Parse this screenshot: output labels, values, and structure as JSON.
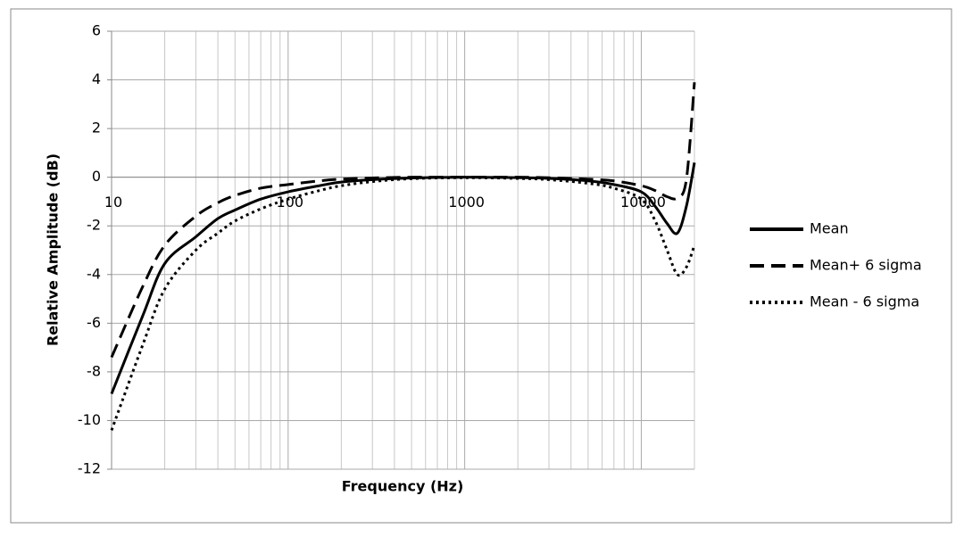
{
  "chart_data": {
    "type": "line",
    "xlabel": "Frequency (Hz)",
    "ylabel": "Relative Amplitude (dB)",
    "x": [
      10,
      15,
      20,
      30,
      40,
      50,
      70,
      100,
      150,
      200,
      300,
      500,
      1000,
      2000,
      3000,
      5000,
      7000,
      10000,
      12000,
      14000,
      16000,
      18000,
      20000
    ],
    "series": [
      {
        "name": "Mean",
        "color": "#000000",
        "style": "solid",
        "values": [
          -8.9,
          -5.7,
          -3.55,
          -2.45,
          -1.7,
          -1.35,
          -0.9,
          -0.6,
          -0.35,
          -0.2,
          -0.1,
          -0.03,
          0,
          -0.02,
          -0.05,
          -0.15,
          -0.3,
          -0.6,
          -1.2,
          -1.9,
          -2.3,
          -1.2,
          0.6
        ]
      },
      {
        "name": "Mean+ 6 sigma",
        "color": "#000000",
        "style": "dashed",
        "values": [
          -7.4,
          -4.5,
          -2.8,
          -1.6,
          -1.05,
          -0.75,
          -0.45,
          -0.3,
          -0.15,
          -0.08,
          -0.03,
          0,
          0,
          0,
          -0.02,
          -0.08,
          -0.15,
          -0.35,
          -0.55,
          -0.8,
          -0.85,
          -0.1,
          3.9
        ]
      },
      {
        "name": "Mean - 6 sigma",
        "color": "#000000",
        "style": "dotted",
        "values": [
          -10.4,
          -6.9,
          -4.6,
          -3.0,
          -2.3,
          -1.8,
          -1.3,
          -0.9,
          -0.55,
          -0.35,
          -0.18,
          -0.06,
          -0.02,
          -0.05,
          -0.1,
          -0.25,
          -0.45,
          -0.9,
          -1.8,
          -3.0,
          -4.0,
          -3.7,
          -2.8
        ]
      }
    ],
    "xlim": [
      10,
      20000
    ],
    "xscale": "log",
    "xticks": [
      10,
      100,
      1000,
      10000
    ],
    "xminorticks": [
      20,
      30,
      40,
      50,
      60,
      70,
      80,
      90,
      200,
      300,
      400,
      500,
      600,
      700,
      800,
      900,
      2000,
      3000,
      4000,
      5000,
      6000,
      7000,
      8000,
      9000,
      20000
    ],
    "ylim": [
      -12,
      6
    ],
    "yticks": [
      -12,
      -10,
      -8,
      -6,
      -4,
      -2,
      0,
      2,
      4,
      6
    ],
    "grid": true,
    "legend": "right"
  }
}
